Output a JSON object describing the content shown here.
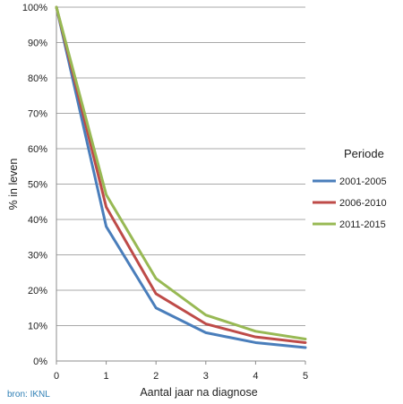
{
  "chart_data": {
    "type": "line",
    "x": [
      0,
      1,
      2,
      3,
      4,
      5
    ],
    "xticks": [
      "0",
      "1",
      "2",
      "3",
      "4",
      "5"
    ],
    "xlim": [
      0,
      5
    ],
    "ylim": [
      0,
      100
    ],
    "yticks": [
      0,
      10,
      20,
      30,
      40,
      50,
      60,
      70,
      80,
      90,
      100
    ],
    "ytick_labels": [
      "0%",
      "10%",
      "20%",
      "30%",
      "40%",
      "50%",
      "60%",
      "70%",
      "80%",
      "90%",
      "100%"
    ],
    "xlabel": "Aantal jaar na diagnose",
    "ylabel": "% in leven",
    "grid": "horizontal",
    "legend": {
      "title": "Periode",
      "placement": "right"
    },
    "series": [
      {
        "name": "2001-2005",
        "color": "#4a7ebb",
        "values": [
          100,
          38,
          15,
          8,
          5.2,
          3.8
        ]
      },
      {
        "name": "2006-2010",
        "color": "#be4b48",
        "values": [
          100,
          43.5,
          19,
          10.5,
          6.8,
          5.2
        ]
      },
      {
        "name": "2011-2015",
        "color": "#98b954",
        "values": [
          100,
          47,
          23.3,
          13,
          8.4,
          6.2
        ]
      }
    ]
  },
  "source_note": "bron: IKNL"
}
